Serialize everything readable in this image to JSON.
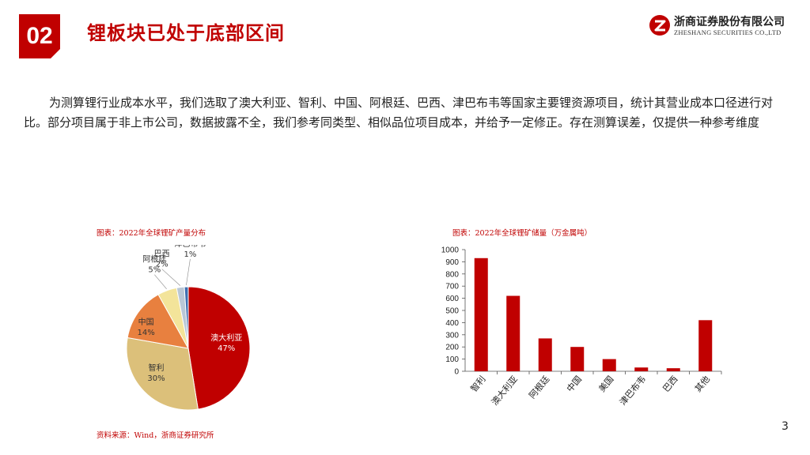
{
  "header": {
    "section_number": "02",
    "title": "锂板块已处于底部区间"
  },
  "logo": {
    "name_cn": "浙商证券股份有限公司",
    "name_en": "ZHESHANG SECURITIES CO.,LTD"
  },
  "intro_text": "为测算锂行业成本水平，我们选取了澳大利亚、智利、中国、阿根廷、巴西、津巴布韦等国家主要锂资源项目，统计其营业成本口径进行对比。部分项目属于非上市公司，数据披露不全，我们参考同类型、相似品位项目成本，并给予一定修正。存在测算误差，仅提供一种参考维度",
  "captions": {
    "pie": "图表：2022年全球锂矿产量分布",
    "bar": "图表：2022年全球锂矿储量（万金属吨）",
    "source": "资料来源：Wind，浙商证券研究所"
  },
  "page_number": "3",
  "colors": {
    "accent": "#c00000"
  },
  "chart_data": [
    {
      "type": "pie",
      "categories": [
        "澳大利亚",
        "智利",
        "中国",
        "阿根廷",
        "巴西",
        "津巴布韦"
      ],
      "values": [
        47,
        30,
        14,
        5,
        2,
        1
      ],
      "labels": [
        "47%",
        "30%",
        "14%",
        "5%",
        "2%",
        "1%"
      ],
      "colors": [
        "#c00000",
        "#dcc07a",
        "#e8803f",
        "#f3e49a",
        "#b9c7d6",
        "#3f6fb0"
      ]
    },
    {
      "type": "bar",
      "categories": [
        "智利",
        "澳大利亚",
        "阿根廷",
        "中国",
        "美国",
        "津巴布韦",
        "巴西",
        "其他"
      ],
      "values": [
        930,
        620,
        270,
        200,
        100,
        31,
        25,
        420
      ],
      "ylim": [
        0,
        1000
      ],
      "yticks": [
        0,
        100,
        200,
        300,
        400,
        500,
        600,
        700,
        800,
        900,
        1000
      ],
      "color": "#c00000"
    }
  ]
}
